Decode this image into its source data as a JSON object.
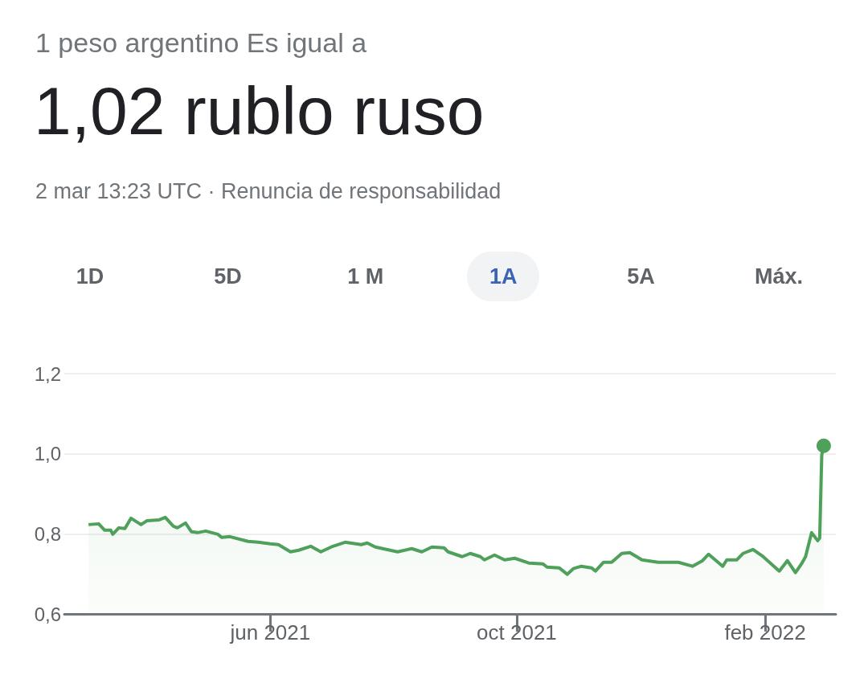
{
  "chart_data": {
    "type": "area",
    "title": "1,02 rublo ruso",
    "subtitle": "1 peso argentino Es igual a",
    "annotations": [
      "2 mar 13:23 UTC · Renuncia de responsabilidad",
      "1D",
      "5D",
      "1 M",
      "1A",
      "5A",
      "Máx."
    ],
    "x": [
      "2021-03-03",
      "2021-03-08",
      "2021-03-11",
      "2021-03-14",
      "2021-03-15",
      "2021-03-18",
      "2021-03-21",
      "2021-03-24",
      "2021-03-29",
      "2021-04-01",
      "2021-04-07",
      "2021-04-10",
      "2021-04-14",
      "2021-04-16",
      "2021-04-20",
      "2021-04-23",
      "2021-04-26",
      "2021-04-30",
      "2021-05-06",
      "2021-05-08",
      "2021-05-12",
      "2021-05-21",
      "2021-05-26",
      "2021-06-01",
      "2021-06-05",
      "2021-06-11",
      "2021-06-15",
      "2021-06-21",
      "2021-06-26",
      "2021-07-02",
      "2021-07-08",
      "2021-07-16",
      "2021-07-19",
      "2021-07-23",
      "2021-08-03",
      "2021-08-10",
      "2021-08-15",
      "2021-08-20",
      "2021-08-26",
      "2021-08-28",
      "2021-09-04",
      "2021-09-08",
      "2021-09-13",
      "2021-09-15",
      "2021-09-20",
      "2021-09-25",
      "2021-09-30",
      "2021-10-07",
      "2021-10-14",
      "2021-10-16",
      "2021-10-22",
      "2021-10-26",
      "2021-10-29",
      "2021-11-02",
      "2021-11-07",
      "2021-11-09",
      "2021-11-13",
      "2021-11-17",
      "2021-11-22",
      "2021-11-26",
      "2021-12-02",
      "2021-12-10",
      "2021-12-20",
      "2021-12-27",
      "2022-01-01",
      "2022-01-04",
      "2022-01-11",
      "2022-01-13",
      "2022-01-18",
      "2022-01-21",
      "2022-01-26",
      "2022-01-31",
      "2022-02-08",
      "2022-02-12",
      "2022-02-16",
      "2022-02-19",
      "2022-02-21",
      "2022-02-24",
      "2022-02-27",
      "2022-02-28",
      "2022-03-01",
      "2022-03-02"
    ],
    "series": [
      {
        "color": "#4fa05a",
        "values": [
          0.823,
          0.825,
          0.809,
          0.809,
          0.799,
          0.815,
          0.813,
          0.839,
          0.823,
          0.833,
          0.835,
          0.841,
          0.819,
          0.815,
          0.827,
          0.805,
          0.803,
          0.807,
          0.799,
          0.791,
          0.793,
          0.781,
          0.779,
          0.775,
          0.773,
          0.755,
          0.759,
          0.769,
          0.755,
          0.769,
          0.779,
          0.773,
          0.777,
          0.767,
          0.755,
          0.763,
          0.755,
          0.767,
          0.765,
          0.755,
          0.743,
          0.751,
          0.743,
          0.735,
          0.747,
          0.735,
          0.739,
          0.727,
          0.725,
          0.717,
          0.715,
          0.699,
          0.713,
          0.719,
          0.715,
          0.707,
          0.729,
          0.729,
          0.751,
          0.753,
          0.735,
          0.729,
          0.729,
          0.719,
          0.733,
          0.749,
          0.719,
          0.735,
          0.735,
          0.751,
          0.761,
          0.743,
          0.707,
          0.733,
          0.703,
          0.725,
          0.743,
          0.803,
          0.783,
          0.789,
          0.996,
          1.02
        ]
      }
    ],
    "xlim": [
      "2021-02-19",
      "2022-03-08"
    ],
    "xticks": [
      {
        "value": "2021-06-01",
        "label": "jun 2021"
      },
      {
        "value": "2021-10-01",
        "label": "oct 2021"
      },
      {
        "value": "2022-02-01",
        "label": "feb 2022"
      }
    ],
    "ylim": [
      0.6,
      1.2
    ],
    "yticks": [
      {
        "value": 0.6,
        "label": "0,6"
      },
      {
        "value": 0.8,
        "label": "0,8"
      },
      {
        "value": 1.0,
        "label": "1,0"
      },
      {
        "value": 1.2,
        "label": "1,2"
      }
    ],
    "grid": "y"
  }
}
